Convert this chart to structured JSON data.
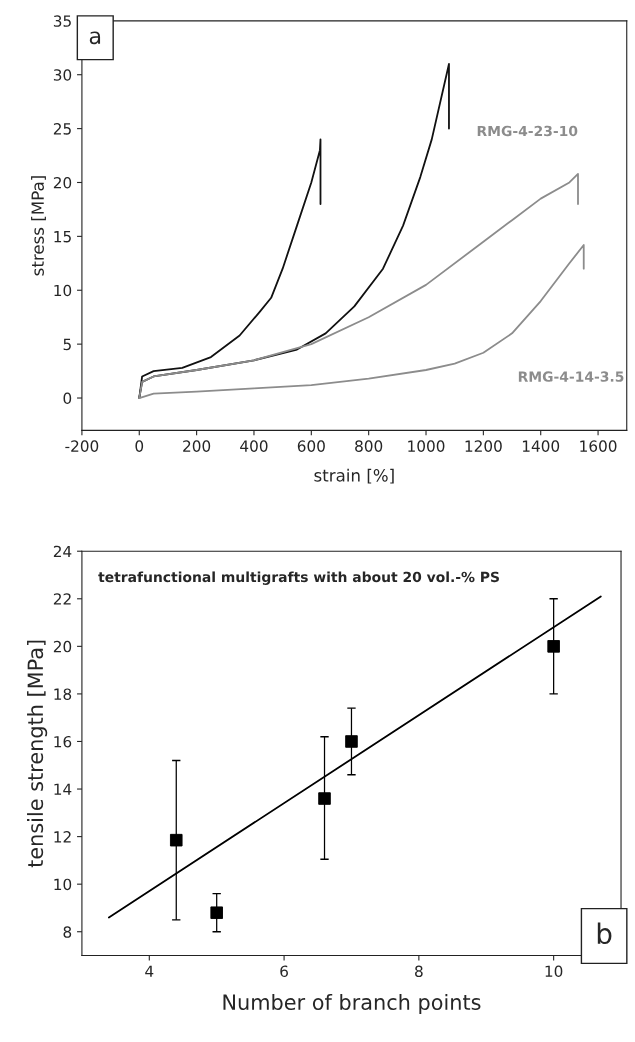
{
  "chart_data": [
    {
      "type": "line",
      "xlabel": "strain [%]",
      "ylabel": "stress [MPa]",
      "xlim": [
        -200,
        1700
      ],
      "ylim": [
        -3,
        35
      ],
      "xticks": [
        -200,
        0,
        200,
        400,
        600,
        800,
        1000,
        1200,
        1400,
        1600
      ],
      "yticks": [
        0,
        5,
        10,
        15,
        20,
        25,
        30,
        35
      ],
      "grid": false,
      "annotations": [
        "a"
      ],
      "series": [
        {
          "color": "#111111",
          "x": [
            0,
            10,
            50,
            150,
            250,
            350,
            420,
            460,
            500,
            550,
            600,
            630,
            632,
            632
          ],
          "values": [
            0,
            2,
            2.5,
            2.8,
            3.8,
            5.8,
            8,
            9.3,
            12,
            16,
            20,
            23,
            24,
            18
          ]
        },
        {
          "color": "#111111",
          "x": [
            0,
            10,
            50,
            200,
            400,
            550,
            650,
            750,
            850,
            920,
            980,
            1020,
            1080,
            1080
          ],
          "values": [
            0,
            1.5,
            2,
            2.6,
            3.5,
            4.5,
            6,
            8.5,
            12,
            16,
            20.5,
            24,
            31,
            25
          ]
        },
        {
          "name": "RMG-4-23-10",
          "color": "#8c8c8c",
          "x": [
            0,
            10,
            50,
            200,
            400,
            600,
            800,
            1000,
            1200,
            1300,
            1400,
            1500,
            1530,
            1530
          ],
          "values": [
            0,
            1.5,
            2,
            2.6,
            3.5,
            5,
            7.5,
            10.5,
            14.5,
            16.5,
            18.5,
            20,
            20.8,
            18
          ]
        },
        {
          "name": "RMG-4-14-3.5",
          "color": "#8c8c8c",
          "x": [
            0,
            50,
            200,
            400,
            600,
            800,
            1000,
            1100,
            1200,
            1300,
            1400,
            1500,
            1550,
            1550
          ],
          "values": [
            0,
            0.4,
            0.6,
            0.9,
            1.2,
            1.8,
            2.6,
            3.2,
            4.2,
            6,
            9,
            12.5,
            14.2,
            12
          ]
        }
      ]
    },
    {
      "type": "scatter",
      "xlabel": "Number of branch points",
      "ylabel": "tensile strength [MPa]",
      "xlim": [
        3,
        11
      ],
      "ylim": [
        7,
        24
      ],
      "xticks": [
        4,
        6,
        8,
        10
      ],
      "yticks": [
        8,
        10,
        12,
        14,
        16,
        18,
        20,
        22,
        24
      ],
      "grid": false,
      "annotations": [
        "tetrafunctional multigrafts with about 20 vol.-% PS",
        "b"
      ],
      "series": [
        {
          "type": "scatter",
          "marker": "square",
          "color": "#000000",
          "x": [
            4.4,
            5,
            6.6,
            7,
            10
          ],
          "values": [
            11.85,
            8.8,
            13.6,
            16,
            20
          ],
          "errors": [
            [
              8.5,
              15.2
            ],
            [
              8,
              9.6
            ],
            [
              11.05,
              16.2
            ],
            [
              14.6,
              17.4
            ],
            [
              18,
              22
            ]
          ]
        },
        {
          "type": "line",
          "color": "#000000",
          "x": [
            3.4,
            10.7
          ],
          "values": [
            8.6,
            22.1
          ]
        }
      ]
    }
  ]
}
